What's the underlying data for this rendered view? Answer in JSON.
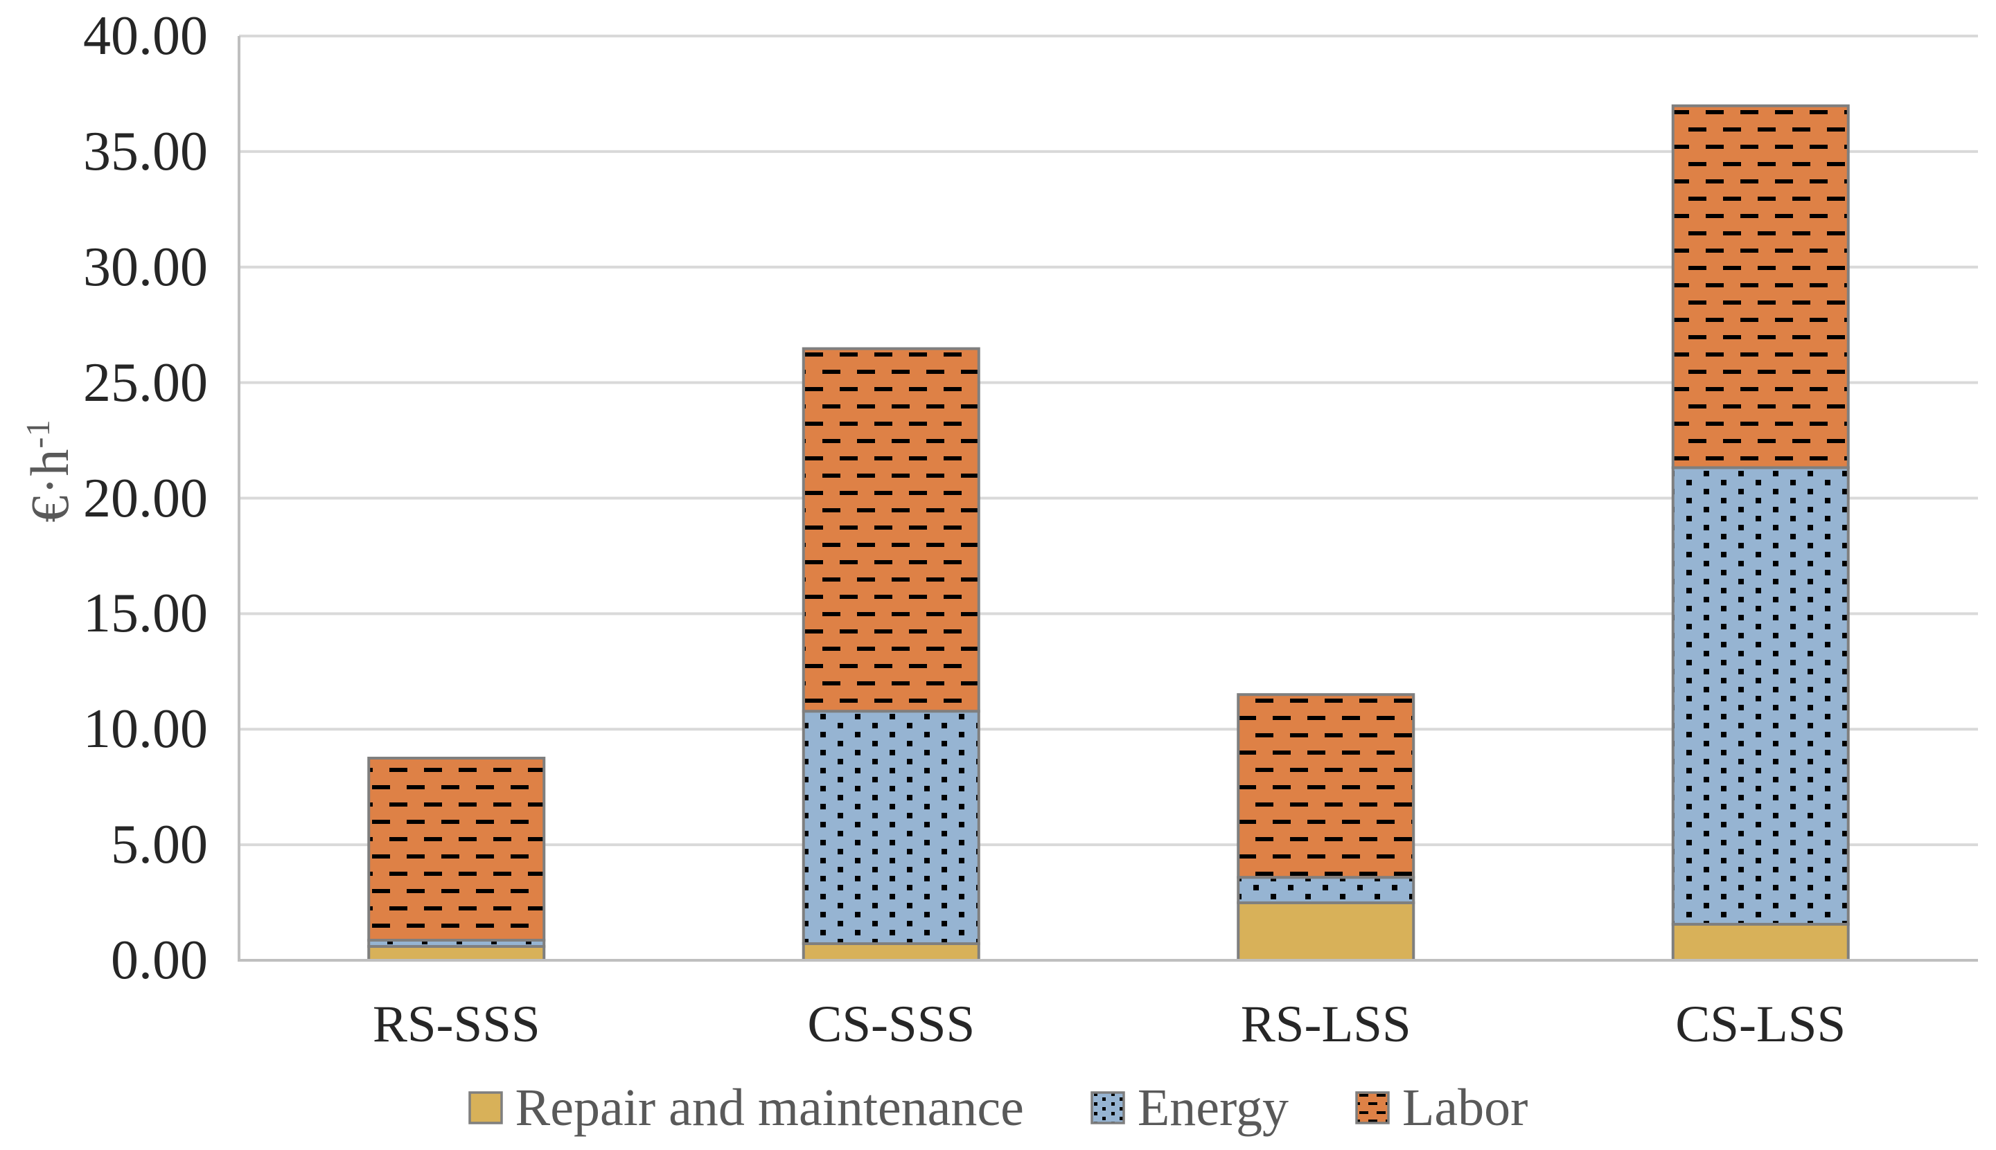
{
  "chart_data": {
    "type": "bar",
    "stacked": true,
    "title": "",
    "categories": [
      "RS-SSS",
      "CS-SSS",
      "RS-LSS",
      "CS-LSS"
    ],
    "series": [
      {
        "name": "Repair and maintenance",
        "color": "#D8B159",
        "pattern": "solid",
        "values": [
          0.6,
          0.72,
          2.49,
          1.56
        ]
      },
      {
        "name": "Energy",
        "color": "#96B4D2",
        "pattern": "dots",
        "values": [
          0.27,
          10.06,
          1.1,
          19.76
        ]
      },
      {
        "name": "Labor",
        "color": "#DE8146",
        "pattern": "dashes",
        "values": [
          7.88,
          15.69,
          7.91,
          15.66
        ]
      }
    ],
    "stack_totals": [
      8.75,
      26.47,
      11.5,
      36.98
    ],
    "xlabel": "",
    "ylabel": "€·h⁻¹",
    "ylabel_parts": {
      "base": "€·h",
      "exponent": "-1"
    },
    "ylim": [
      0,
      40
    ],
    "ytick_step": 5,
    "ytick_labels": [
      "0.00",
      "5.00",
      "10.00",
      "15.00",
      "20.00",
      "25.00",
      "30.00",
      "35.00",
      "40.00"
    ],
    "grid": "horizontal",
    "legend_position": "bottom",
    "legend": [
      "Repair and maintenance",
      "Energy",
      "Labor"
    ]
  },
  "colors": {
    "repair_fill": "#D8B159",
    "energy_fill": "#96B4D2",
    "labor_fill": "#DE8146",
    "pattern_ink": "#000000",
    "bar_border": "#7F7F7F",
    "gridline": "#D9D9D9",
    "axis_line": "#BFBFBF",
    "tick_text": "#262626",
    "secondary_text": "#595959",
    "background": "#FFFFFF"
  }
}
